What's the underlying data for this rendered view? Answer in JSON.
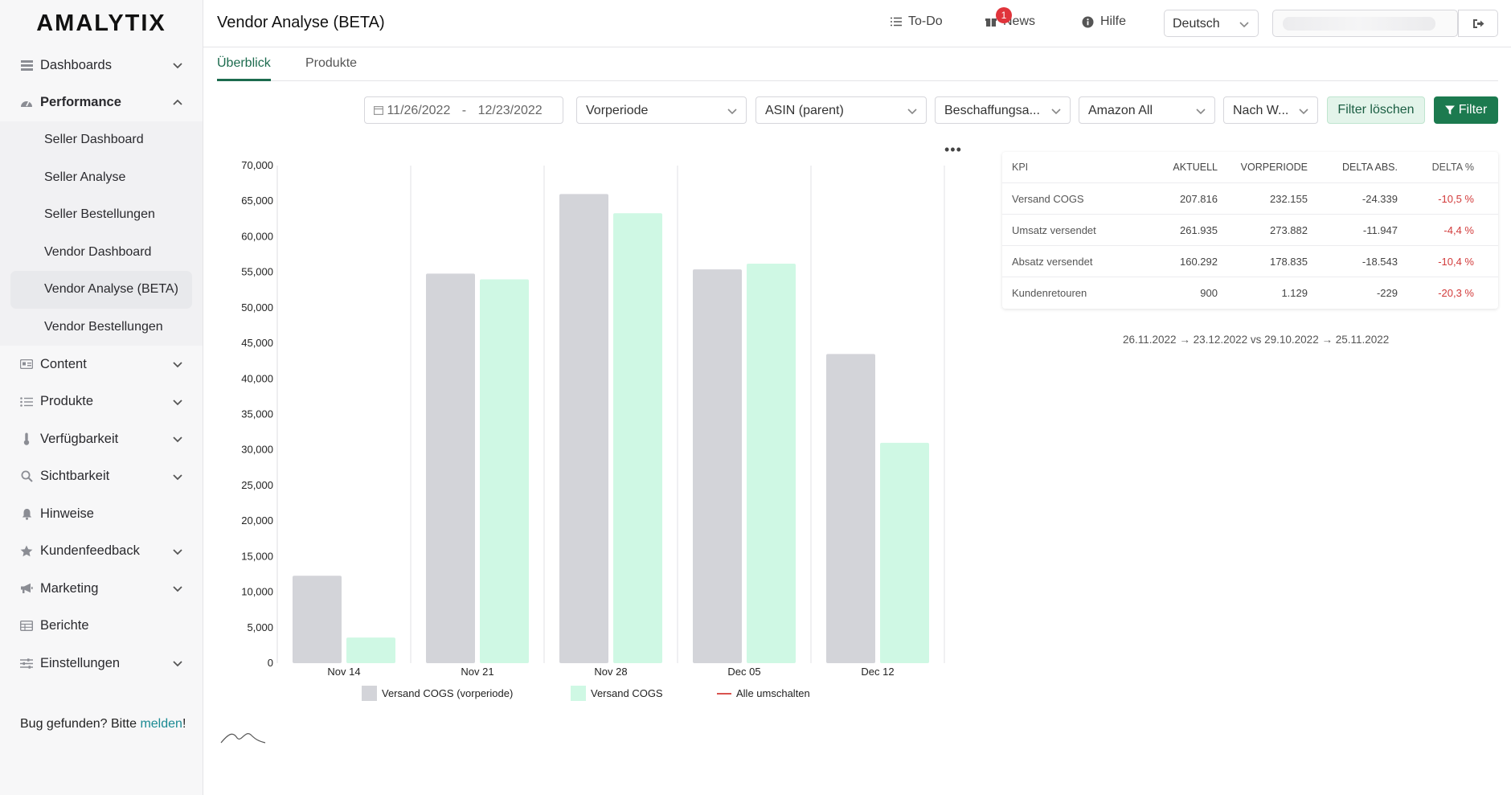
{
  "app": {
    "logo": "AMALYTIX",
    "title": "Vendor Analyse (BETA)"
  },
  "sidebar": {
    "items": [
      {
        "label": "Dashboards",
        "icon": "dashboard-icon",
        "expandable": true,
        "bold": false
      },
      {
        "label": "Performance",
        "icon": "gauge-icon",
        "expandable": true,
        "expanded": true,
        "bold": true
      },
      {
        "label": "Content",
        "icon": "content-card-icon",
        "expandable": true
      },
      {
        "label": "Produkte",
        "icon": "list-icon",
        "expandable": true
      },
      {
        "label": "Verfügbarkeit",
        "icon": "thermometer-icon",
        "expandable": true
      },
      {
        "label": "Sichtbarkeit",
        "icon": "search-icon",
        "expandable": true
      },
      {
        "label": "Hinweise",
        "icon": "bell-icon",
        "expandable": false
      },
      {
        "label": "Kundenfeedback",
        "icon": "star-icon",
        "expandable": true
      },
      {
        "label": "Marketing",
        "icon": "megaphone-icon",
        "expandable": true
      },
      {
        "label": "Berichte",
        "icon": "table-icon",
        "expandable": false
      },
      {
        "label": "Einstellungen",
        "icon": "sliders-icon",
        "expandable": true
      }
    ],
    "performance_sub": [
      "Seller Dashboard",
      "Seller Analyse",
      "Seller Bestellungen",
      "Vendor Dashboard",
      "Vendor Analyse (BETA)",
      "Vendor Bestellungen"
    ],
    "active_sub": "Vendor Analyse (BETA)",
    "bug_text": "Bug gefunden? Bitte ",
    "bug_link": "melden",
    "bug_end": "!"
  },
  "topbar": {
    "todo": "To-Do",
    "news": "News",
    "news_badge": "1",
    "help": "Hilfe",
    "language": "Deutsch"
  },
  "tabs": [
    "Überblick",
    "Produkte"
  ],
  "filters": {
    "date_from": "11/26/2022",
    "date_sep": "-",
    "date_to": "12/23/2022",
    "compare": "Vorperiode",
    "asin": "ASIN (parent)",
    "procurement": "Beschaffungsa...",
    "marketplace": "Amazon All",
    "grouping": "Nach W...",
    "clear_label": "Filter löschen",
    "filter_label": "Filter"
  },
  "chart_data": {
    "type": "bar",
    "categories": [
      "Nov 14",
      "Nov 21",
      "Nov 28",
      "Dec 05",
      "Dec 12"
    ],
    "series": [
      {
        "name": "Versand COGS (vorperiode)",
        "color": "#d3d4d9",
        "values": [
          12300,
          54800,
          66000,
          55400,
          43500
        ]
      },
      {
        "name": "Versand COGS",
        "color": "#cff8e4",
        "values": [
          3600,
          54000,
          63300,
          56200,
          31000
        ]
      }
    ],
    "ylim": [
      0,
      70000
    ],
    "yticks": [
      "70,000",
      "65,000",
      "60,000",
      "55,000",
      "50,000",
      "45,000",
      "40,000",
      "35,000",
      "30,000",
      "25,000",
      "20,000",
      "15,000",
      "10,000",
      "5,000",
      "0"
    ],
    "toggle_label": "Alle umschalten",
    "toggle_color": "#d9534f"
  },
  "kpi_table": {
    "headers": [
      "KPI",
      "AKTUELL",
      "VORPERIODE",
      "DELTA ABS.",
      "DELTA %"
    ],
    "rows": [
      [
        "Versand COGS",
        "207.816",
        "232.155",
        "-24.339",
        "-10,5 %"
      ],
      [
        "Umsatz versendet",
        "261.935",
        "273.882",
        "-11.947",
        "-4,4 %"
      ],
      [
        "Absatz versendet",
        "160.292",
        "178.835",
        "-18.543",
        "-10,4 %"
      ],
      [
        "Kundenretouren",
        "900",
        "1.129",
        "-229",
        "-20,3 %"
      ]
    ]
  },
  "period_text": "26.11.2022 → 23.12.2022 vs 29.10.2022 → 25.11.2022"
}
